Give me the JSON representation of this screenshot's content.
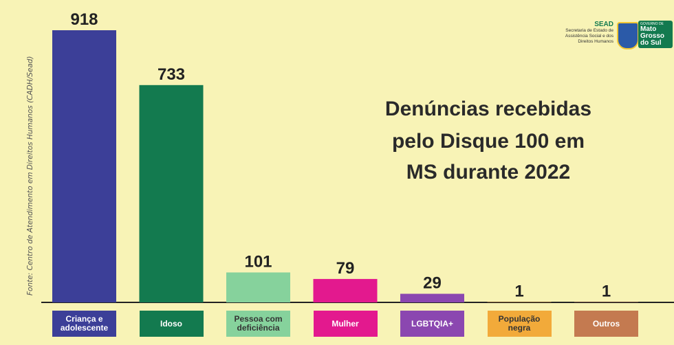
{
  "chart_data": {
    "type": "bar",
    "title": [
      "Denúncias recebidas",
      "pelo Disque 100 em",
      "MS durante 2022"
    ],
    "source": "Fonte: Centro de Atendimento em Direitos Humanos (CADH/Sead)",
    "categories": [
      "Criança e adolescente",
      "Idoso",
      "Pessoa com deficiência",
      "Mulher",
      "LGBTQIA+",
      "População negra",
      "Outros"
    ],
    "values": [
      918,
      733,
      101,
      79,
      29,
      1,
      1
    ],
    "colors": [
      "#3c3f98",
      "#137a4f",
      "#86d29c",
      "#e3198e",
      "#8b47b0",
      "#f2aa3a",
      "#c47a50"
    ]
  },
  "logo": {
    "name": "SEAD",
    "subtitle": "Secretaria de Estado de Assistência Social e dos Direitos Humanos",
    "government": "GOVERNO DE",
    "state": "Mato Grosso do Sul"
  }
}
